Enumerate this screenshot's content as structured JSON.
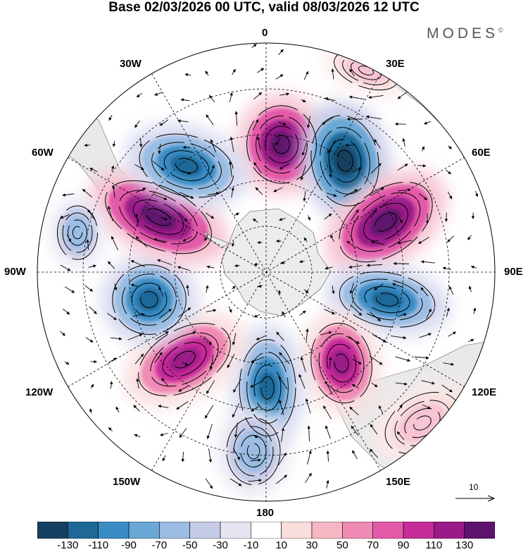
{
  "title": "Base 02/03/2026 00 UTC, valid 08/03/2026 12 UTC",
  "brand": {
    "name": "MODES",
    "mark": "©"
  },
  "longitude_labels": {
    "lon_0": "0",
    "lon_30e": "30E",
    "lon_60e": "60E",
    "lon_90e": "90E",
    "lon_120e": "120E",
    "lon_150e": "150E",
    "lon_180": "180",
    "lon_150w": "150W",
    "lon_120w": "120W",
    "lon_90w": "90W",
    "lon_60w": "60W",
    "lon_30w": "30W"
  },
  "reference_vector": {
    "label": "10"
  },
  "colorbar": {
    "colors": [
      "#153f60",
      "#1d6897",
      "#3a8cc4",
      "#6aa8d6",
      "#9bbde3",
      "#c6cbe6",
      "#e6e4f1",
      "#ffffff",
      "#f9dede",
      "#f6b6c3",
      "#f08bb5",
      "#e35aa8",
      "#c62c98",
      "#9a1b87",
      "#5f126d"
    ],
    "tick_labels": [
      "-130",
      "-110",
      "-90",
      "-70",
      "-50",
      "-30",
      "-10",
      "10",
      "30",
      "50",
      "70",
      "90",
      "110",
      "130"
    ]
  },
  "anomaly_centers": [
    {
      "value": "strong positive",
      "longitude": "0"
    },
    {
      "value": "strong negative",
      "longitude": "30E"
    },
    {
      "value": "strong positive",
      "longitude": "60E"
    },
    {
      "value": "negative",
      "longitude": "90E"
    },
    {
      "value": "positive",
      "longitude": "150E"
    },
    {
      "value": "negative",
      "longitude": "180"
    },
    {
      "value": "positive",
      "longitude": "120W"
    },
    {
      "value": "negative",
      "longitude": "90W"
    },
    {
      "value": "strong positive",
      "longitude": "60W"
    },
    {
      "value": "negative",
      "longitude": "30W"
    }
  ]
}
